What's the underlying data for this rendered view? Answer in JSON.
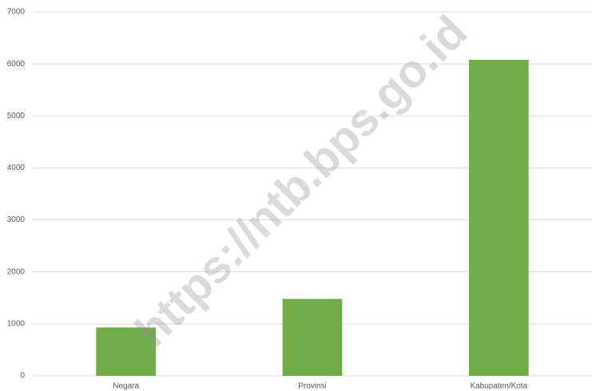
{
  "chart_data": {
    "type": "bar",
    "categories": [
      "Negara",
      "Provinsi",
      "Kabupaten/Kota"
    ],
    "values": [
      930,
      1480,
      6080
    ],
    "color": "#70ad47",
    "ylim": [
      0,
      7000
    ],
    "yticks": [
      0,
      1000,
      2000,
      3000,
      4000,
      5000,
      6000,
      7000
    ],
    "grid": true,
    "watermark": "https://ntb.bps.go.id"
  }
}
